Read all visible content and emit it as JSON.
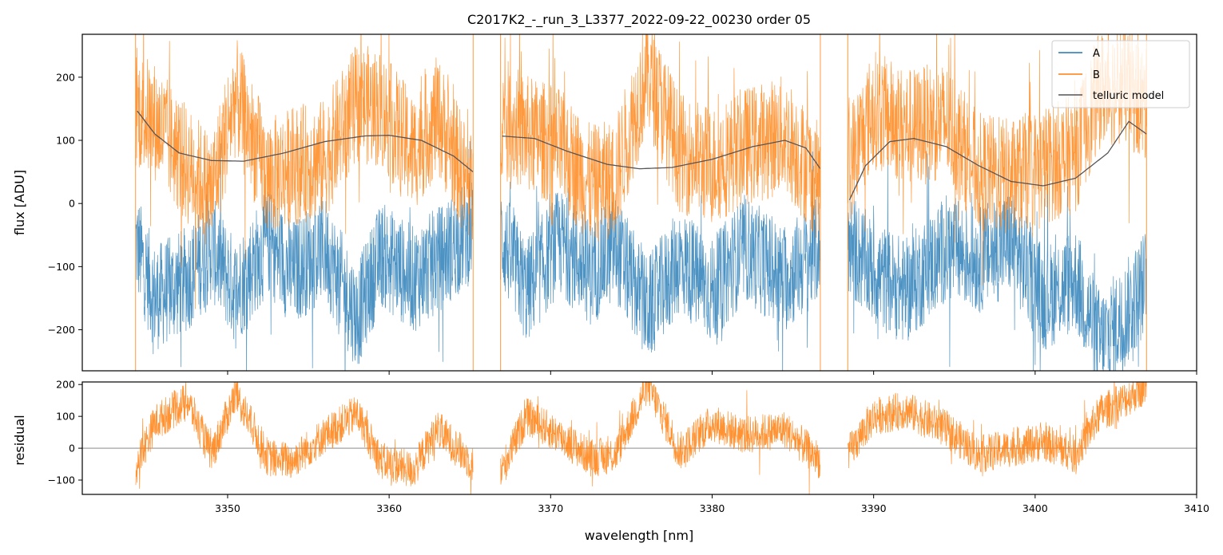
{
  "chart_data": [
    {
      "type": "line",
      "panel": "main",
      "title": "C2017K2_-_run_3_L3377_2022-09-22_00230  order 05",
      "xlabel": "",
      "ylabel": "flux [ADU]",
      "xlim": [
        3341,
        3410
      ],
      "ylim": [
        -265,
        268
      ],
      "xticks": [
        3350,
        3360,
        3370,
        3380,
        3390,
        3400,
        3410
      ],
      "yticks": [
        -200,
        -100,
        0,
        100,
        200
      ],
      "ytick_labels": [
        "−200",
        "−100",
        "0",
        "100",
        "200"
      ],
      "legend_position": "top-right",
      "legend": [
        "A",
        "B",
        "telluric model"
      ],
      "segments": [
        [
          3344.3,
          3365.2
        ],
        [
          3366.9,
          3386.7
        ],
        [
          3388.4,
          3406.9
        ]
      ],
      "series": [
        {
          "name": "A",
          "color": "#1f77b4",
          "x": [
            3344.3,
            3345.5,
            3347.5,
            3349.0,
            3350.5,
            3352.5,
            3354.0,
            3356.0,
            3358.0,
            3359.5,
            3361.5,
            3363.0,
            3365.2,
            3366.9,
            3368.5,
            3370.5,
            3372.5,
            3374.0,
            3376.0,
            3378.0,
            3380.0,
            3382.0,
            3384.5,
            3386.7,
            3388.4,
            3390.0,
            3392.0,
            3394.5,
            3396.5,
            3398.5,
            3400.5,
            3402.5,
            3404.0,
            3405.5,
            3406.9
          ],
          "y": [
            -60,
            -150,
            -120,
            -70,
            -140,
            -60,
            -110,
            -70,
            -180,
            -80,
            -120,
            -90,
            -40,
            -50,
            -140,
            -60,
            -110,
            -70,
            -170,
            -90,
            -140,
            -70,
            -120,
            -70,
            -60,
            -110,
            -140,
            -70,
            -90,
            -60,
            -150,
            -120,
            -220,
            -180,
            -120
          ]
        },
        {
          "name": "B",
          "color": "#ff7f0e",
          "x": [
            3344.3,
            3345.5,
            3347.5,
            3349.0,
            3350.5,
            3352.5,
            3354.0,
            3356.0,
            3358.0,
            3359.5,
            3361.5,
            3363.0,
            3365.2,
            3366.9,
            3368.5,
            3370.5,
            3372.5,
            3374.0,
            3376.0,
            3378.0,
            3380.0,
            3382.0,
            3384.5,
            3386.7,
            3388.4,
            3390.0,
            3392.0,
            3394.5,
            3396.5,
            3398.5,
            3400.5,
            3402.5,
            3404.0,
            3405.5,
            3406.9
          ],
          "y": [
            150,
            130,
            60,
            20,
            170,
            40,
            60,
            70,
            160,
            150,
            80,
            140,
            10,
            140,
            110,
            90,
            30,
            40,
            210,
            80,
            60,
            90,
            110,
            30,
            60,
            150,
            120,
            130,
            50,
            40,
            60,
            80,
            180,
            190,
            150
          ]
        },
        {
          "name": "telluric model",
          "color": "#555555",
          "x": [
            3344.3,
            3345.5,
            3347.0,
            3349.0,
            3351.0,
            3353.5,
            3356.0,
            3358.5,
            3360.0,
            3362.0,
            3364.0,
            3365.2,
            3366.9,
            3369.0,
            3371.0,
            3373.5,
            3375.5,
            3377.5,
            3380.0,
            3382.5,
            3384.5,
            3385.8,
            3386.7,
            3388.4,
            3389.5,
            3391.0,
            3392.5,
            3394.5,
            3396.5,
            3398.5,
            3400.5,
            3402.5,
            3404.5,
            3405.8,
            3406.9
          ],
          "y": [
            150,
            110,
            80,
            68,
            67,
            80,
            98,
            107,
            108,
            100,
            75,
            50,
            107,
            103,
            83,
            62,
            55,
            57,
            70,
            90,
            100,
            88,
            55,
            0,
            60,
            98,
            103,
            90,
            60,
            35,
            28,
            40,
            80,
            130,
            110
          ]
        }
      ]
    },
    {
      "type": "line",
      "panel": "residual",
      "title": "",
      "xlabel": "wavelength [nm]",
      "ylabel": "residual",
      "xlim": [
        3341,
        3410
      ],
      "ylim": [
        -145,
        208
      ],
      "xticks": [
        3350,
        3360,
        3370,
        3380,
        3390,
        3400,
        3410
      ],
      "xtick_labels": [
        "3350",
        "3360",
        "3370",
        "3380",
        "3390",
        "3400",
        "3410"
      ],
      "yticks": [
        -100,
        0,
        100,
        200
      ],
      "ytick_labels": [
        "−100",
        "0",
        "100",
        "200"
      ],
      "zero_line": 0,
      "segments": [
        [
          3344.3,
          3365.2
        ],
        [
          3366.9,
          3386.7
        ],
        [
          3388.4,
          3406.9
        ]
      ],
      "series": [
        {
          "name": "B residual",
          "color": "#ff7f0e",
          "x": [
            3344.3,
            3345.5,
            3347.5,
            3349.0,
            3350.5,
            3352.5,
            3354.0,
            3356.0,
            3358.0,
            3359.5,
            3361.5,
            3363.0,
            3365.2,
            3366.9,
            3368.5,
            3370.5,
            3372.5,
            3374.0,
            3376.0,
            3378.0,
            3380.0,
            3382.0,
            3384.5,
            3386.7,
            3388.4,
            3390.0,
            3392.0,
            3394.5,
            3396.5,
            3398.5,
            3400.5,
            3402.5,
            3404.0,
            3405.5,
            3406.9
          ],
          "y": [
            -60,
            80,
            150,
            -20,
            170,
            -30,
            -40,
            40,
            110,
            -40,
            -70,
            60,
            -50,
            -80,
            100,
            40,
            -30,
            -20,
            200,
            -10,
            80,
            40,
            60,
            -40,
            -20,
            100,
            120,
            60,
            -20,
            0,
            20,
            -20,
            110,
            150,
            200
          ]
        }
      ]
    }
  ]
}
